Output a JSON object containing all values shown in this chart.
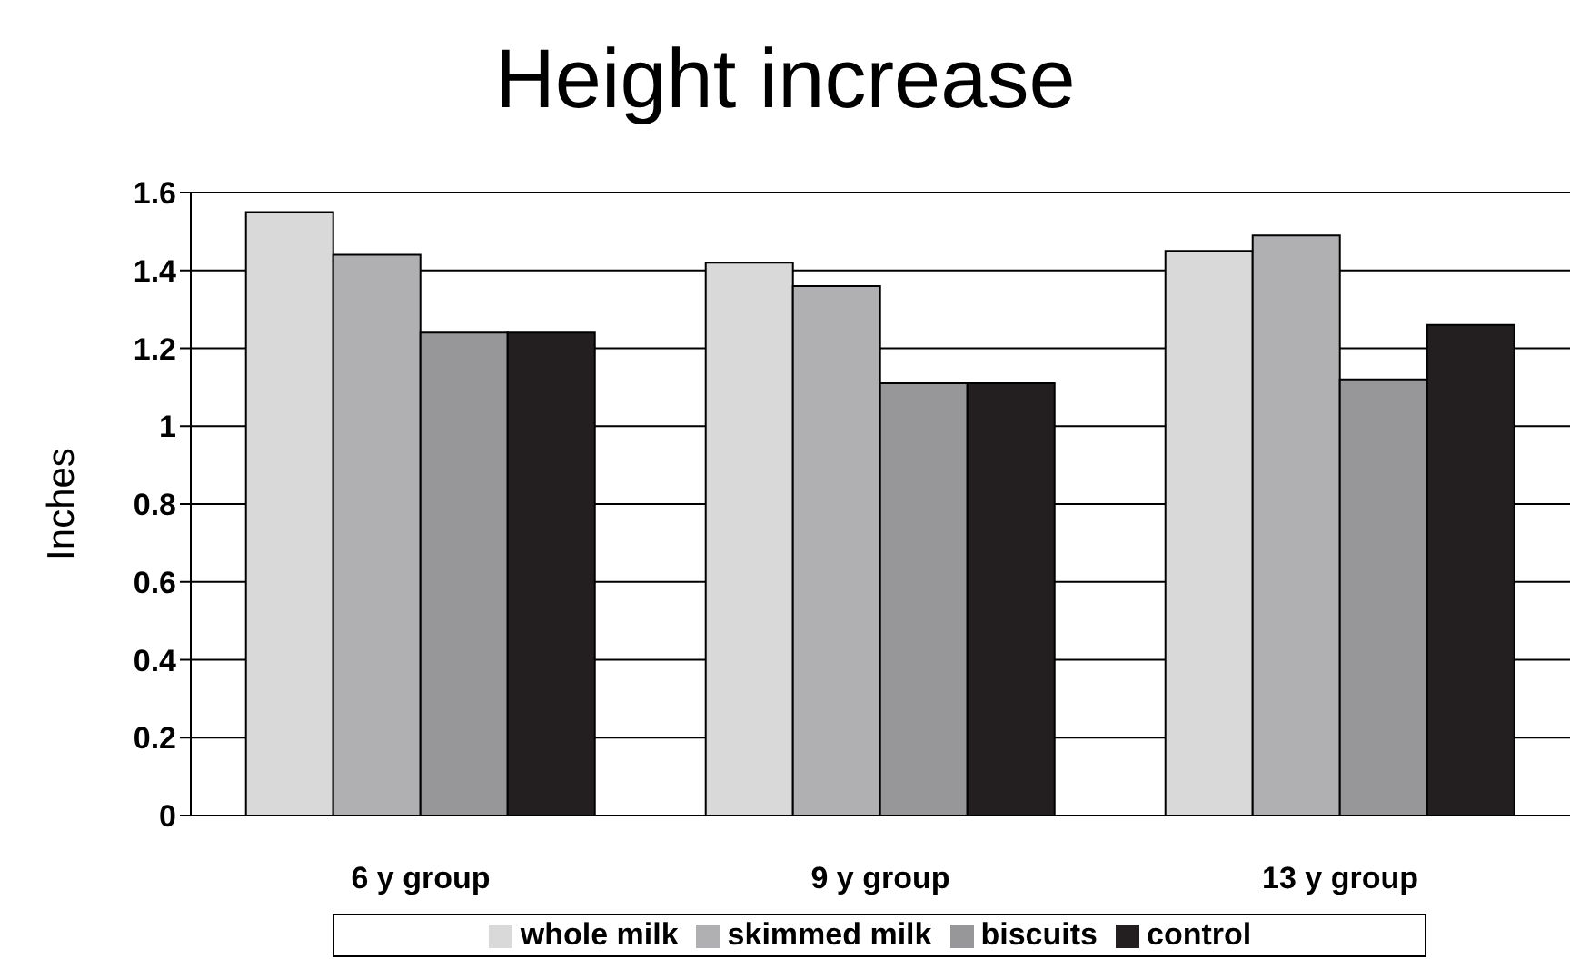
{
  "chart_data": {
    "type": "bar",
    "title": "Height increase",
    "ylabel": "Inches",
    "categories": [
      "6 y group",
      "9 y group",
      "13 y group"
    ],
    "series": [
      {
        "name": "whole milk",
        "color": "#d9d9d9",
        "values": [
          1.55,
          1.42,
          1.45
        ]
      },
      {
        "name": "skimmed milk",
        "color": "#b0b0b3",
        "values": [
          1.44,
          1.36,
          1.49
        ]
      },
      {
        "name": "biscuits",
        "color": "#979799",
        "values": [
          1.24,
          1.11,
          1.12
        ]
      },
      {
        "name": "control",
        "color": "#231f20",
        "values": [
          1.24,
          1.11,
          1.26
        ]
      }
    ],
    "ylim": [
      0,
      1.6
    ],
    "yticks": [
      0,
      0.2,
      0.4,
      0.6,
      0.8,
      1,
      1.2,
      1.4,
      1.6
    ],
    "grid": "y",
    "legend": "bottom"
  }
}
